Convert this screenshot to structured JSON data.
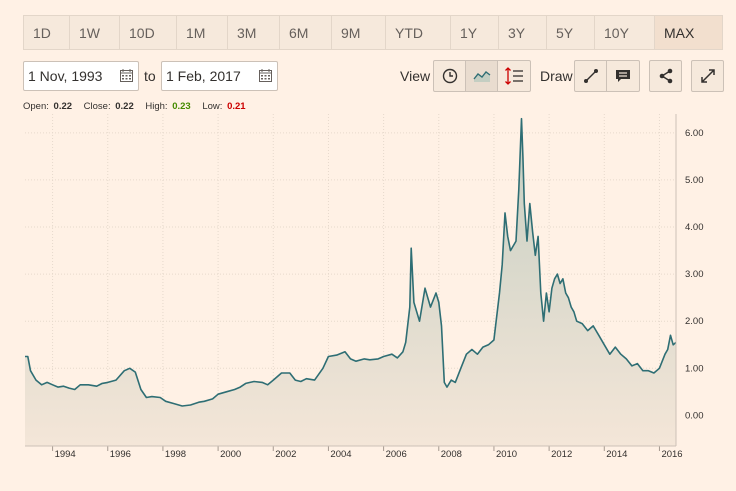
{
  "ranges": [
    "1D",
    "1W",
    "10D",
    "1M",
    "3M",
    "6M",
    "9M",
    "YTD",
    "1Y",
    "3Y",
    "5Y",
    "10Y",
    "MAX"
  ],
  "active_range": "MAX",
  "date_from": "1 Nov, 1993",
  "to_label": "to",
  "date_to": "1 Feb, 2017",
  "view_label": "View",
  "draw_label": "Draw",
  "icons": {
    "view": [
      "clock-icon",
      "line-chart-icon",
      "indicators-icon"
    ],
    "draw": [
      "line-draw-icon",
      "comment-icon"
    ],
    "share": "share-icon",
    "expand": "expand-icon"
  },
  "ohlc": {
    "open_label": "Open:",
    "open": "0.22",
    "close_label": "Close:",
    "close": "0.22",
    "high_label": "High:",
    "high": "0.23",
    "low_label": "Low:",
    "low": "0.21"
  },
  "colors": {
    "line": "#2e6e74",
    "area_top": "#cfd5c9",
    "high": "#458b00",
    "low": "#cc0000"
  },
  "chart_data": {
    "type": "area",
    "xlim": [
      1993.0,
      2016.6
    ],
    "ylim": [
      -0.65,
      6.4
    ],
    "y_ticks": [
      0,
      1,
      2,
      3,
      4,
      5,
      6
    ],
    "y_tick_labels": [
      "0.00",
      "1.00",
      "2.00",
      "3.00",
      "4.00",
      "5.00",
      "6.00"
    ],
    "x_ticks": [
      1994,
      1996,
      1998,
      2000,
      2002,
      2004,
      2006,
      2008,
      2010,
      2012,
      2014,
      2016
    ],
    "x_tick_labels": [
      "1994",
      "1996",
      "1998",
      "2000",
      "2002",
      "2004",
      "2006",
      "2008",
      "2010",
      "2012",
      "2014",
      "2016"
    ],
    "grid": true,
    "series": [
      {
        "x": [
          1993.0,
          1993.1,
          1993.2,
          1993.4,
          1993.6,
          1993.8,
          1994.0,
          1994.2,
          1994.4,
          1994.6,
          1994.8,
          1995.0,
          1995.3,
          1995.6,
          1995.8,
          1996.0,
          1996.3,
          1996.6,
          1996.8,
          1997.0,
          1997.2,
          1997.4,
          1997.6,
          1997.9,
          1998.1,
          1998.4,
          1998.7,
          1999.0,
          1999.3,
          1999.5,
          1999.8,
          2000.0,
          2000.3,
          2000.6,
          2000.8,
          2001.0,
          2001.3,
          2001.6,
          2001.8,
          2002.0,
          2002.3,
          2002.6,
          2002.8,
          2003.0,
          2003.2,
          2003.5,
          2003.8,
          2004.0,
          2004.3,
          2004.6,
          2004.8,
          2005.0,
          2005.3,
          2005.5,
          2005.8,
          2006.0,
          2006.3,
          2006.5,
          2006.7,
          2006.8,
          2006.95,
          2007.0,
          2007.1,
          2007.3,
          2007.5,
          2007.7,
          2007.9,
          2008.0,
          2008.1,
          2008.2,
          2008.3,
          2008.45,
          2008.6,
          2008.8,
          2009.0,
          2009.2,
          2009.4,
          2009.6,
          2009.8,
          2010.0,
          2010.2,
          2010.3,
          2010.4,
          2010.5,
          2010.6,
          2010.8,
          2010.9,
          2011.0,
          2011.05,
          2011.1,
          2011.2,
          2011.3,
          2011.4,
          2011.5,
          2011.6,
          2011.7,
          2011.8,
          2011.9,
          2012.0,
          2012.1,
          2012.2,
          2012.3,
          2012.4,
          2012.5,
          2012.6,
          2012.7,
          2012.8,
          2012.9,
          2013.0,
          2013.2,
          2013.4,
          2013.6,
          2013.8,
          2014.0,
          2014.2,
          2014.4,
          2014.6,
          2014.8,
          2015.0,
          2015.2,
          2015.4,
          2015.6,
          2015.8,
          2016.0,
          2016.2,
          2016.3,
          2016.4,
          2016.5,
          2016.6
        ],
        "y": [
          1.25,
          1.25,
          0.95,
          0.75,
          0.65,
          0.7,
          0.65,
          0.6,
          0.62,
          0.58,
          0.55,
          0.65,
          0.65,
          0.62,
          0.68,
          0.7,
          0.75,
          0.95,
          1.0,
          0.92,
          0.55,
          0.38,
          0.4,
          0.38,
          0.3,
          0.25,
          0.2,
          0.22,
          0.28,
          0.3,
          0.35,
          0.45,
          0.5,
          0.55,
          0.6,
          0.68,
          0.72,
          0.7,
          0.65,
          0.75,
          0.9,
          0.9,
          0.75,
          0.72,
          0.78,
          0.75,
          1.0,
          1.25,
          1.28,
          1.35,
          1.2,
          1.15,
          1.2,
          1.18,
          1.2,
          1.25,
          1.3,
          1.22,
          1.35,
          1.55,
          2.3,
          3.55,
          2.4,
          2.0,
          2.7,
          2.3,
          2.6,
          2.4,
          1.9,
          0.7,
          0.6,
          0.75,
          0.7,
          1.0,
          1.3,
          1.4,
          1.3,
          1.45,
          1.5,
          1.6,
          2.6,
          3.2,
          4.3,
          3.8,
          3.5,
          3.7,
          4.8,
          6.3,
          5.5,
          4.5,
          3.7,
          4.5,
          3.9,
          3.4,
          3.8,
          2.6,
          2.0,
          2.6,
          2.2,
          2.7,
          2.9,
          3.0,
          2.8,
          2.9,
          2.6,
          2.5,
          2.3,
          2.2,
          2.0,
          1.95,
          1.8,
          1.9,
          1.7,
          1.5,
          1.3,
          1.45,
          1.3,
          1.2,
          1.05,
          1.1,
          0.95,
          0.95,
          0.9,
          1.0,
          1.3,
          1.4,
          1.7,
          1.5,
          1.55
        ]
      }
    ]
  }
}
